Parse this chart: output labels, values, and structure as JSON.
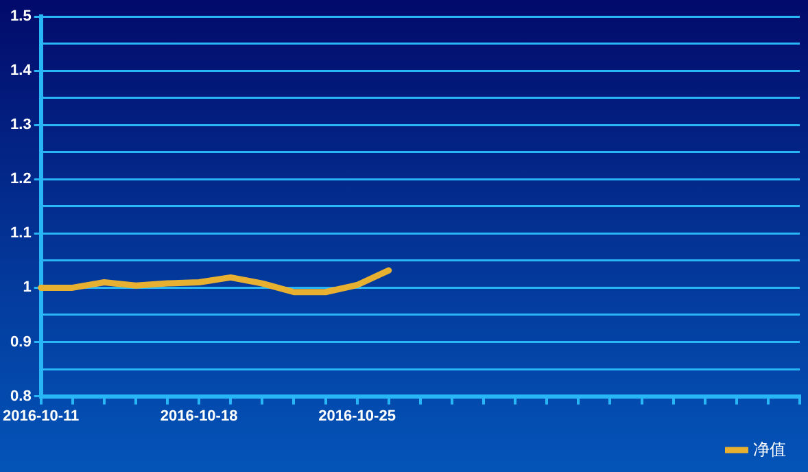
{
  "chart_data": {
    "type": "line",
    "categories": [
      "2016-10-11",
      null,
      null,
      null,
      null,
      "2016-10-18",
      null,
      null,
      null,
      null,
      "2016-10-25",
      null,
      null,
      null,
      null,
      null,
      null,
      null,
      null,
      null,
      null,
      null,
      null,
      null,
      null
    ],
    "series": [
      {
        "name": "净值",
        "color": "#e8b030",
        "values": [
          1.0,
          1.0,
          1.01,
          1.004,
          1.008,
          1.01,
          1.019,
          1.008,
          0.992,
          0.992,
          1.005,
          1.032,
          null,
          null,
          null,
          null,
          null,
          null,
          null,
          null,
          null,
          null,
          null,
          null,
          null
        ]
      }
    ],
    "ylim": [
      0.8,
      1.5
    ],
    "yticks": [
      0.8,
      {
        "value": 0.85,
        "label": null
      },
      0.9,
      {
        "value": 0.95,
        "label": null
      },
      {
        "value": 1,
        "label": "1"
      },
      {
        "value": 1.05,
        "label": null
      },
      1.1,
      {
        "value": 1.15,
        "label": null
      },
      1.2,
      {
        "value": 1.25,
        "label": null
      },
      1.3,
      {
        "value": 1.35,
        "label": null
      },
      1.4,
      {
        "value": 1.45,
        "label": null
      },
      1.5
    ],
    "grid": "y",
    "legend": "bottom right",
    "marker": "none",
    "line_style": "solid"
  }
}
